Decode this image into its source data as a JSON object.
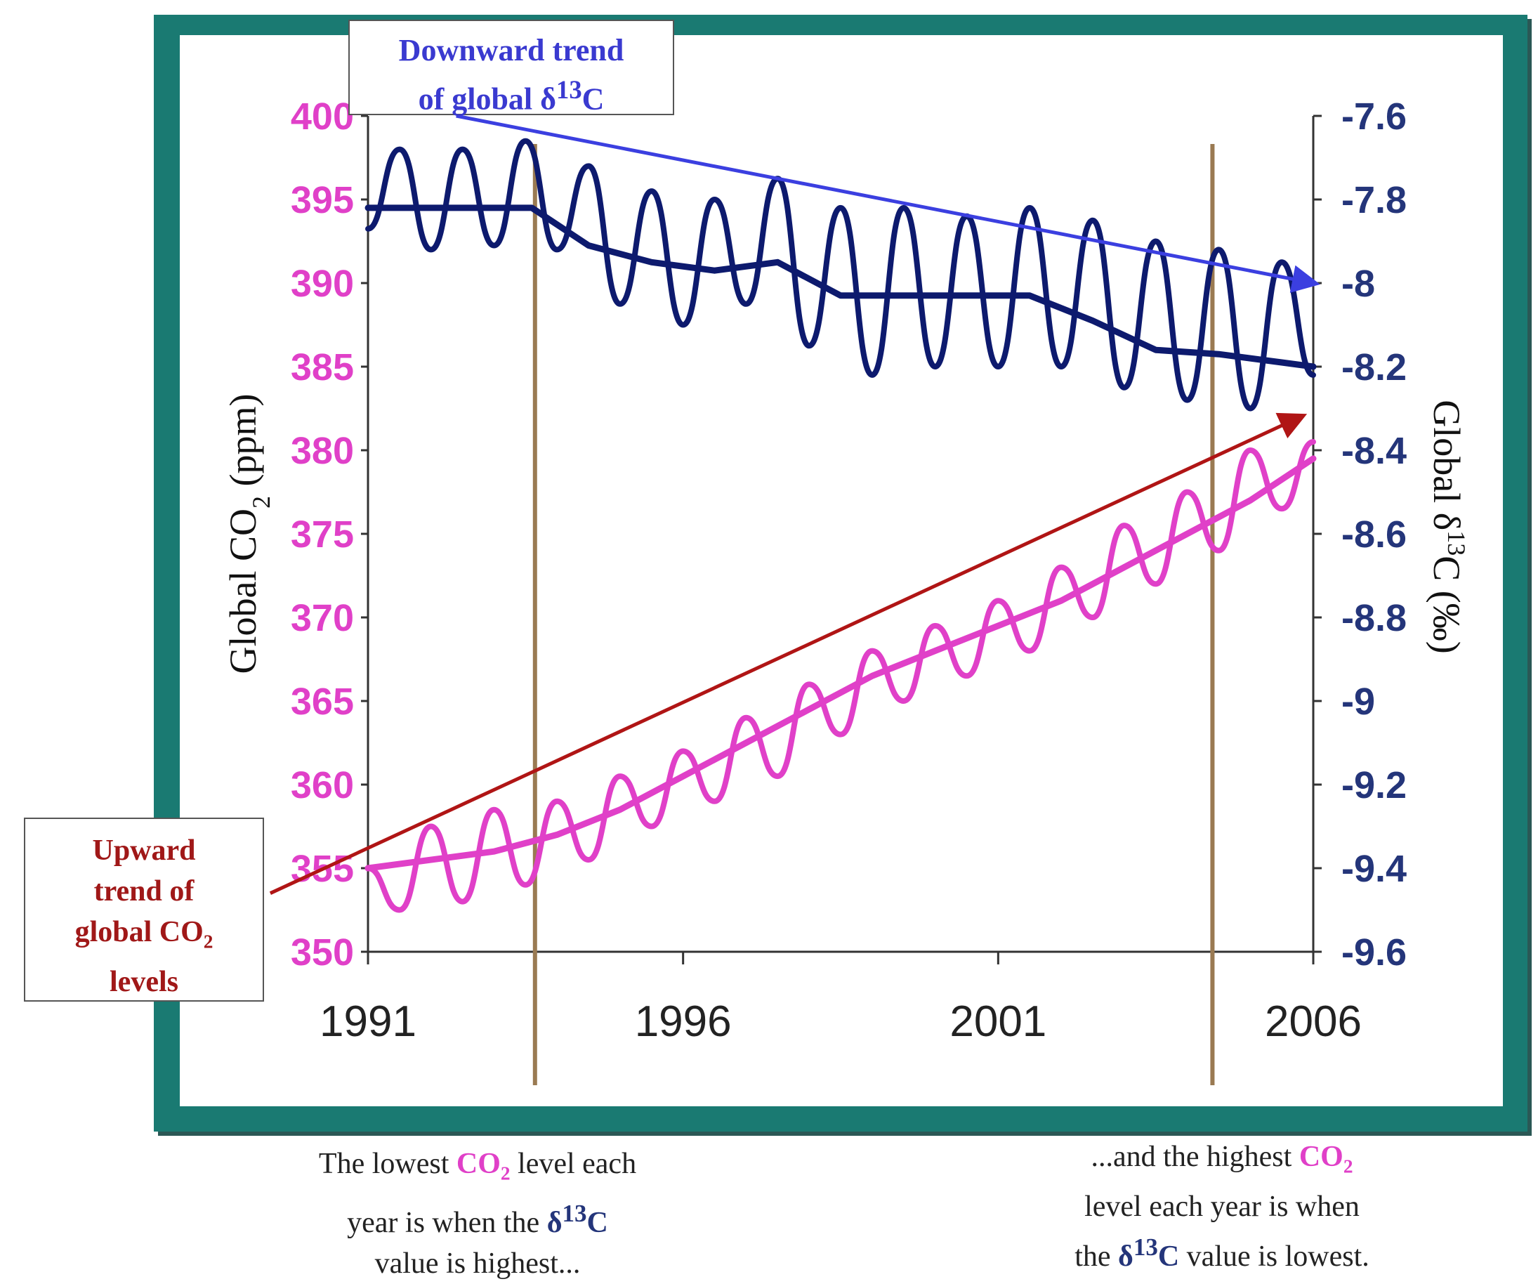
{
  "chart_data": {
    "type": "line",
    "x_ticks": [
      "1991",
      "1996",
      "2001",
      "2006"
    ],
    "xlim": [
      1991,
      2006
    ],
    "left_axis": {
      "label": "Global CO",
      "label_sub": "2",
      "label_suffix": " (ppm)",
      "ticks": [
        "400",
        "395",
        "390",
        "385",
        "380",
        "375",
        "370",
        "365",
        "360",
        "355",
        "350"
      ],
      "ylim": [
        350,
        400
      ],
      "color": "#e040c8"
    },
    "right_axis": {
      "label": "Global δ",
      "label_sup": "13",
      "label_suffix": "C (‰)",
      "ticks": [
        "-7.6",
        "-7.8",
        "-8",
        "-8.2",
        "-8.4",
        "-8.6",
        "-8.8",
        "-9",
        "-9.2",
        "-9.4",
        "-9.6"
      ],
      "ylim": [
        -9.6,
        -7.6
      ],
      "color": "#24357a"
    },
    "series": [
      {
        "axis": "left",
        "color": "#e040c8",
        "kind": "monthly",
        "x": [
          1991.0,
          1991.5,
          1992.0,
          1992.5,
          1993.0,
          1993.5,
          1994.0,
          1994.5,
          1995.0,
          1995.5,
          1996.0,
          1996.5,
          1997.0,
          1997.5,
          1998.0,
          1998.5,
          1999.0,
          1999.5,
          2000.0,
          2000.5,
          2001.0,
          2001.5,
          2002.0,
          2002.5,
          2003.0,
          2003.5,
          2004.0,
          2004.5,
          2005.0,
          2005.5,
          2006.0
        ],
        "values": [
          355.0,
          352.5,
          357.5,
          353.0,
          358.5,
          354.0,
          359.0,
          355.5,
          360.5,
          357.5,
          362.0,
          359.0,
          364.0,
          360.5,
          366.0,
          363.0,
          368.0,
          365.0,
          369.5,
          366.5,
          371.0,
          368.0,
          373.0,
          370.0,
          375.5,
          372.0,
          377.5,
          374.0,
          380.0,
          376.5,
          380.5
        ]
      },
      {
        "axis": "left",
        "color": "#e040c8",
        "kind": "trend",
        "x": [
          1991.0,
          1992.0,
          1993.0,
          1994.0,
          1995.0,
          1996.0,
          1997.0,
          1998.0,
          1999.0,
          2000.0,
          2001.0,
          2002.0,
          2003.0,
          2004.0,
          2005.0,
          2006.0
        ],
        "values": [
          355.0,
          355.5,
          356.0,
          357.0,
          358.5,
          360.5,
          362.5,
          364.5,
          366.5,
          368.0,
          369.5,
          371.0,
          373.0,
          375.0,
          377.0,
          379.5
        ]
      },
      {
        "axis": "right",
        "color": "#0d1a6e",
        "kind": "monthly",
        "x": [
          1991.0,
          1991.5,
          1992.0,
          1992.5,
          1993.0,
          1993.5,
          1994.0,
          1994.5,
          1995.0,
          1995.5,
          1996.0,
          1996.5,
          1997.0,
          1997.5,
          1998.0,
          1998.5,
          1999.0,
          1999.5,
          2000.0,
          2000.5,
          2001.0,
          2001.5,
          2002.0,
          2002.5,
          2003.0,
          2003.5,
          2004.0,
          2004.5,
          2005.0,
          2005.5,
          2006.0
        ],
        "values": [
          -7.87,
          -7.68,
          -7.92,
          -7.68,
          -7.91,
          -7.66,
          -7.92,
          -7.72,
          -8.05,
          -7.78,
          -8.1,
          -7.8,
          -8.05,
          -7.75,
          -8.15,
          -7.82,
          -8.22,
          -7.82,
          -8.2,
          -7.84,
          -8.2,
          -7.82,
          -8.2,
          -7.85,
          -8.25,
          -7.9,
          -8.28,
          -7.92,
          -8.3,
          -7.95,
          -8.22
        ]
      },
      {
        "axis": "right",
        "color": "#0d1a6e",
        "kind": "trend",
        "x": [
          1991.0,
          1992.0,
          1993.0,
          1993.6,
          1994.5,
          1995.5,
          1996.5,
          1997.5,
          1998.5,
          1999.5,
          2000.5,
          2001.5,
          2002.5,
          2003.5,
          2004.5,
          2005.5,
          2006.0
        ],
        "values": [
          -7.82,
          -7.82,
          -7.82,
          -7.82,
          -7.91,
          -7.95,
          -7.97,
          -7.95,
          -8.03,
          -8.03,
          -8.03,
          -8.03,
          -8.09,
          -8.16,
          -8.17,
          -8.19,
          -8.2
        ]
      }
    ],
    "trend_arrows": [
      {
        "name": "downward-trend-arrow",
        "color": "#3b3fe0",
        "axis": "right",
        "from": [
          1992.4,
          -7.6
        ],
        "to": [
          2006.0,
          -8.0
        ]
      },
      {
        "name": "upward-trend-arrow",
        "color": "#b01515",
        "axis": "left",
        "from": [
          1989.45,
          353.5
        ],
        "to": [
          2005.8,
          382.0
        ]
      }
    ],
    "marker_lines": [
      {
        "name": "marker-line-1993",
        "x": 1993.65,
        "color": "#9a7a52"
      },
      {
        "name": "marker-line-2004",
        "x": 2004.4,
        "color": "#9a7a52"
      }
    ],
    "callouts": {
      "downward": [
        "Downward trend",
        "of global δ",
        "13",
        "C"
      ],
      "upward": [
        "Upward",
        "trend of",
        "global CO",
        "2",
        "levels"
      ]
    },
    "captions": {
      "left": [
        "The lowest ",
        "CO",
        "2",
        " level each",
        "year is when the ",
        "δ",
        "13",
        "C",
        "value is highest..."
      ],
      "right": [
        "...and the highest ",
        "CO",
        "2",
        "level each year is when",
        "the ",
        "δ",
        "13",
        "C",
        " value is lowest."
      ]
    }
  }
}
